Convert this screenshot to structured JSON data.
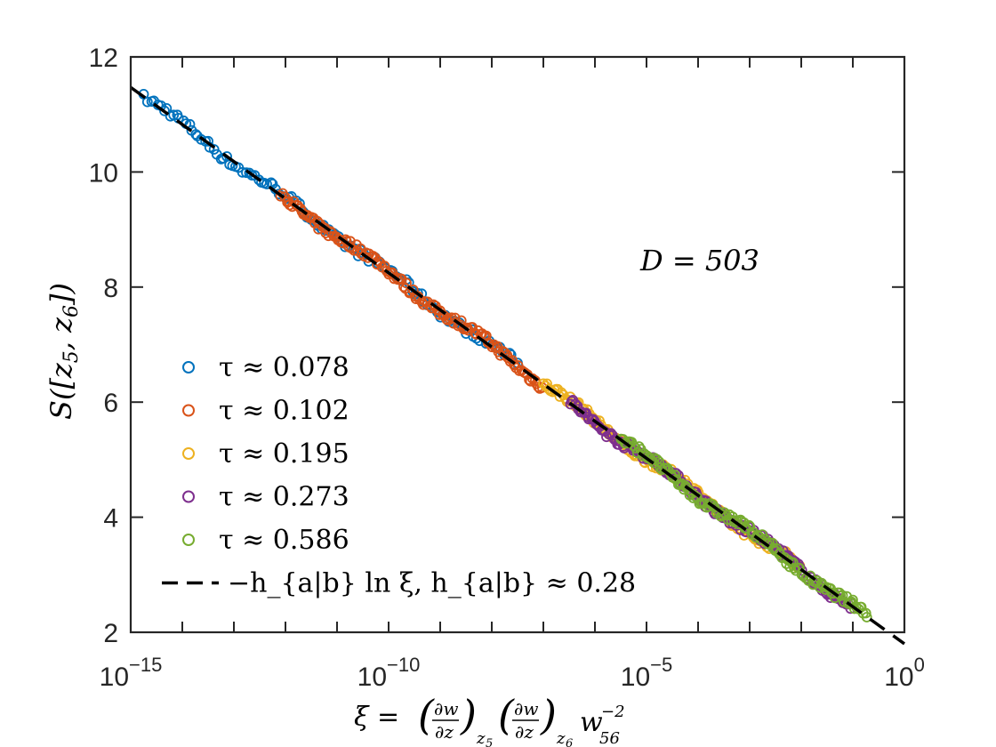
{
  "chart_data": {
    "type": "scatter",
    "xscale": "log",
    "xlim_exp": [
      -15,
      0
    ],
    "ylim": [
      2,
      12
    ],
    "x_ticks": [
      {
        "exp": -15,
        "base": "10",
        "sup": "−15"
      },
      {
        "exp": -10,
        "base": "10",
        "sup": "−10"
      },
      {
        "exp": -5,
        "base": "10",
        "sup": "−5"
      },
      {
        "exp": 0,
        "base": "10",
        "sup": "0"
      }
    ],
    "y_ticks": [
      "2",
      "4",
      "6",
      "8",
      "10",
      "12"
    ],
    "xlabel": "ξ = (∂w/∂z)_{z5} (∂w/∂z)_{z6} w_{56}^{−2}",
    "ylabel": "S([z5, z6])",
    "annotation": "D = 503",
    "series": [
      {
        "name": "τ ≈ 0.078",
        "color": "#0072BD",
        "xexp_range": [
          -14.75,
          -7.45
        ],
        "points": 120
      },
      {
        "name": "τ ≈ 0.102",
        "color": "#D95319",
        "xexp_range": [
          -12.1,
          -7.0
        ],
        "points": 140
      },
      {
        "name": "τ ≈ 0.195",
        "color": "#EDB120",
        "xexp_range": [
          -7.0,
          -2.0
        ],
        "points": 150
      },
      {
        "name": "τ ≈ 0.273",
        "color": "#7E2F8E",
        "xexp_range": [
          -6.5,
          -1.0
        ],
        "points": 160
      },
      {
        "name": "τ ≈ 0.586",
        "color": "#77AC30",
        "xexp_range": [
          -5.5,
          -0.7
        ],
        "points": 140
      }
    ],
    "fit": {
      "label": "−h_{a|b} ln ξ,  h_{a|b} ≈ 0.28",
      "h": 0.28,
      "style": "dashed",
      "color": "#000000"
    },
    "legend_position": "lower-left"
  }
}
